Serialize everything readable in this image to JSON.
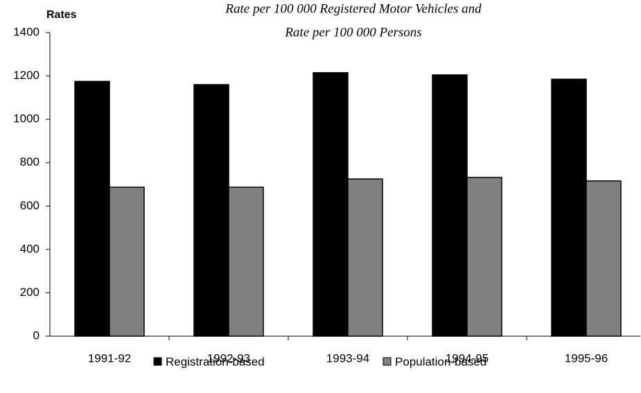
{
  "chart_data": {
    "type": "bar",
    "title": [
      "Rate per 100 000 Registered Motor Vehicles and",
      "Rate per 100 000 Persons"
    ],
    "y_label": "Rates",
    "categories": [
      "1991-92",
      "1992-93",
      "1993-94",
      "1994-95",
      "1995-96"
    ],
    "series": [
      {
        "name": "Registration-based",
        "color": "#000000",
        "values": [
          1175,
          1160,
          1215,
          1205,
          1185
        ]
      },
      {
        "name": "Population-based",
        "color": "#808080",
        "values": [
          687,
          687,
          725,
          732,
          716
        ]
      }
    ],
    "ylim": [
      0,
      1400
    ],
    "yticks": [
      0,
      200,
      400,
      600,
      800,
      1000,
      1200,
      1400
    ],
    "grid": false
  }
}
